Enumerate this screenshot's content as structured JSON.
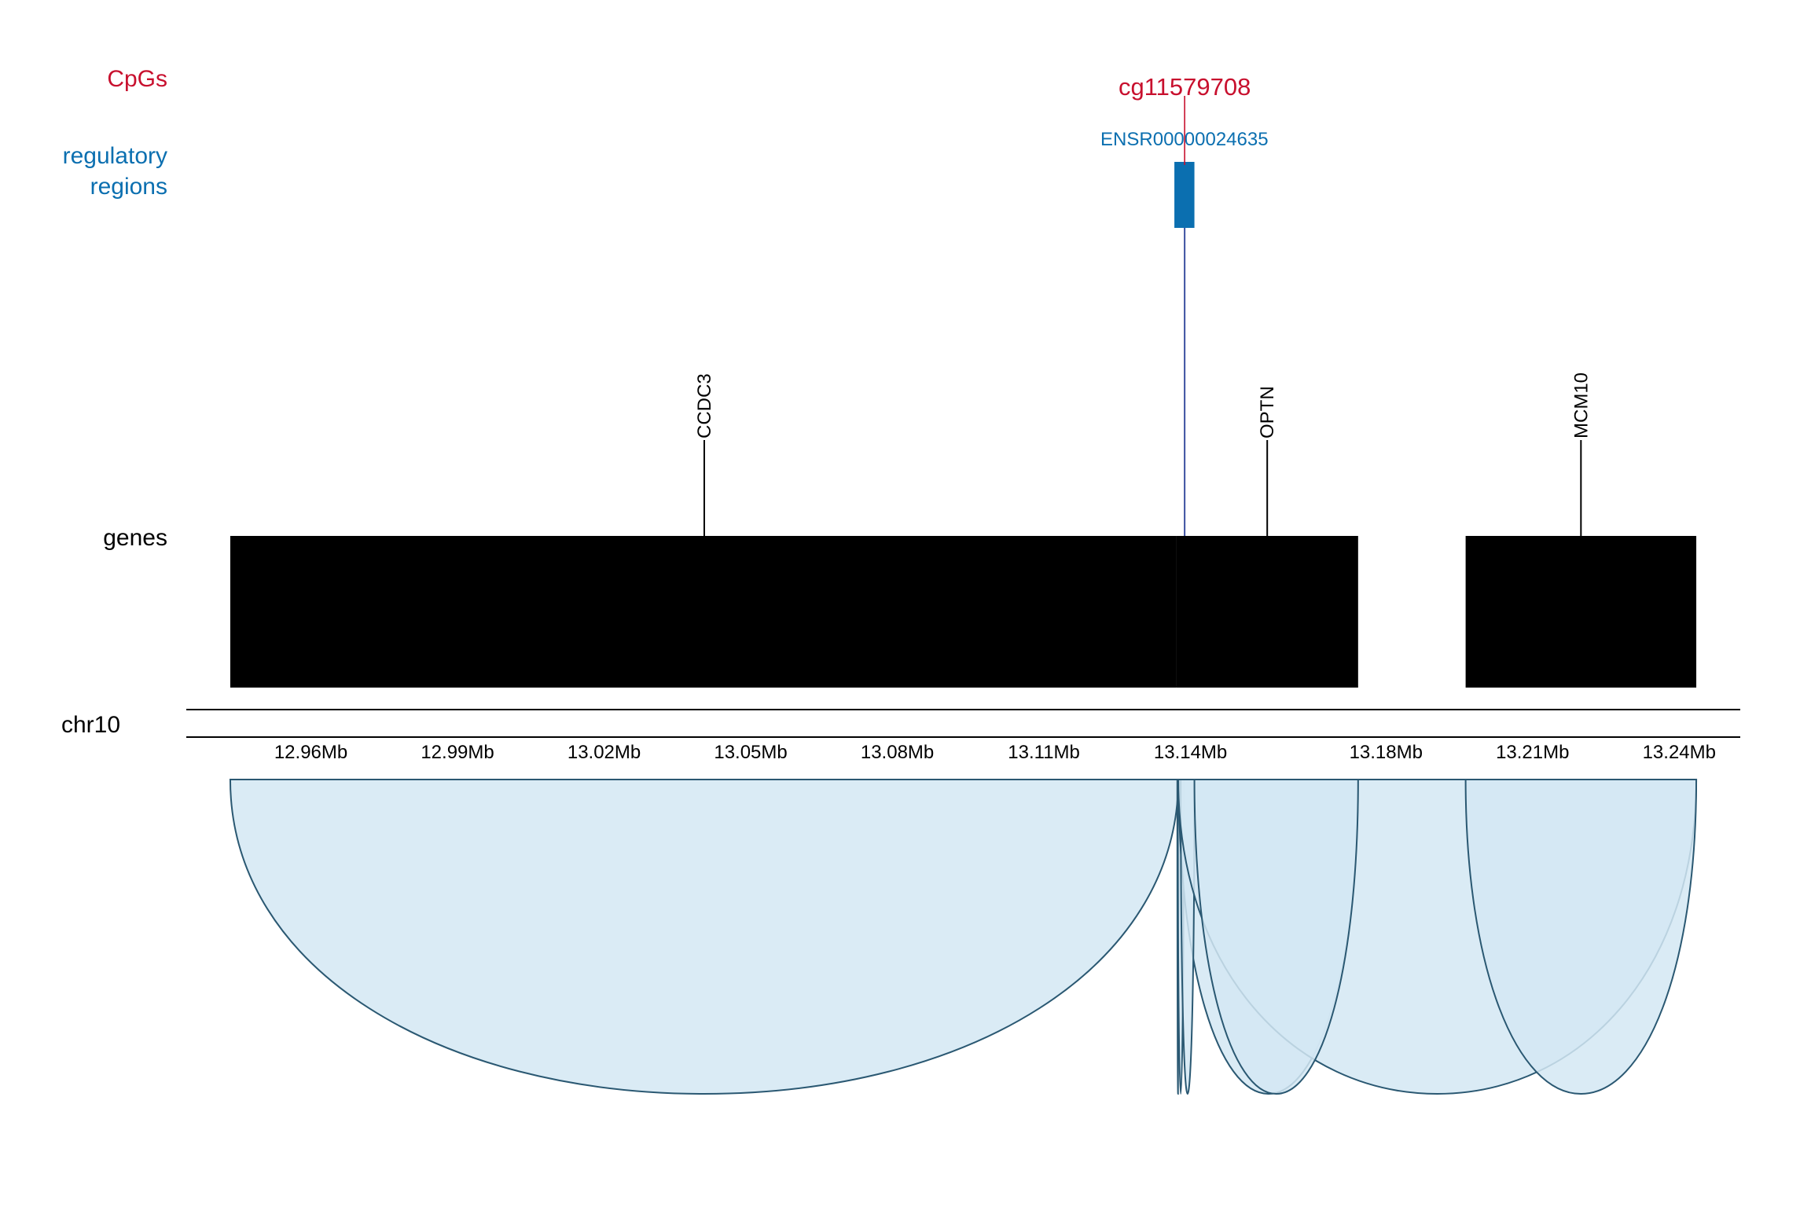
{
  "tracks": {
    "cpgs_label": "CpGs",
    "regulatory_label_line1": "regulatory",
    "regulatory_label_line2": "regions",
    "genes_label": "genes",
    "chromosome_label": "chr10"
  },
  "colors": {
    "cpg": "#c8102e",
    "regulatory": "#0b6fb0",
    "gene": "#000000",
    "link_fill": "#d4e8f3",
    "link_stroke": "#2a5872",
    "axis": "#000000"
  },
  "axis": {
    "domain_mb": [
      12.9345,
      13.2525
    ],
    "ticks": [
      {
        "mb": 12.96,
        "label": "12.96Mb"
      },
      {
        "mb": 12.99,
        "label": "12.99Mb"
      },
      {
        "mb": 13.02,
        "label": "13.02Mb"
      },
      {
        "mb": 13.05,
        "label": "13.05Mb"
      },
      {
        "mb": 13.08,
        "label": "13.08Mb"
      },
      {
        "mb": 13.11,
        "label": "13.11Mb"
      },
      {
        "mb": 13.14,
        "label": "13.14Mb"
      },
      {
        "mb": 13.18,
        "label": "13.18Mb"
      },
      {
        "mb": 13.21,
        "label": "13.21Mb"
      },
      {
        "mb": 13.24,
        "label": "13.24Mb"
      }
    ]
  },
  "cpg": {
    "name": "cg11579708",
    "position_mb": 13.1388
  },
  "regulatory_regions": [
    {
      "name": "ENSR00000024635",
      "start_mb": 13.1367,
      "end_mb": 13.1408
    }
  ],
  "genes": [
    {
      "name": "CCDC3",
      "start_mb": 12.9435,
      "end_mb": 13.1371,
      "label_mb": 13.0405
    },
    {
      "name": "OPTN",
      "start_mb": 13.1371,
      "end_mb": 13.1743,
      "label_mb": 13.1557
    },
    {
      "name": "MCM10",
      "start_mb": 13.1963,
      "end_mb": 13.2435,
      "label_mb": 13.2199
    }
  ],
  "links": [
    {
      "from_mb": 12.9435,
      "to_mb": 13.1375
    },
    {
      "from_mb": 13.1373,
      "to_mb": 13.1376
    },
    {
      "from_mb": 13.1374,
      "to_mb": 13.1386
    },
    {
      "from_mb": 13.1376,
      "to_mb": 13.1743
    },
    {
      "from_mb": 13.138,
      "to_mb": 13.1408
    },
    {
      "from_mb": 13.1375,
      "to_mb": 13.2435
    },
    {
      "from_mb": 13.1408,
      "to_mb": 13.1743
    },
    {
      "from_mb": 13.1963,
      "to_mb": 13.2435
    }
  ]
}
